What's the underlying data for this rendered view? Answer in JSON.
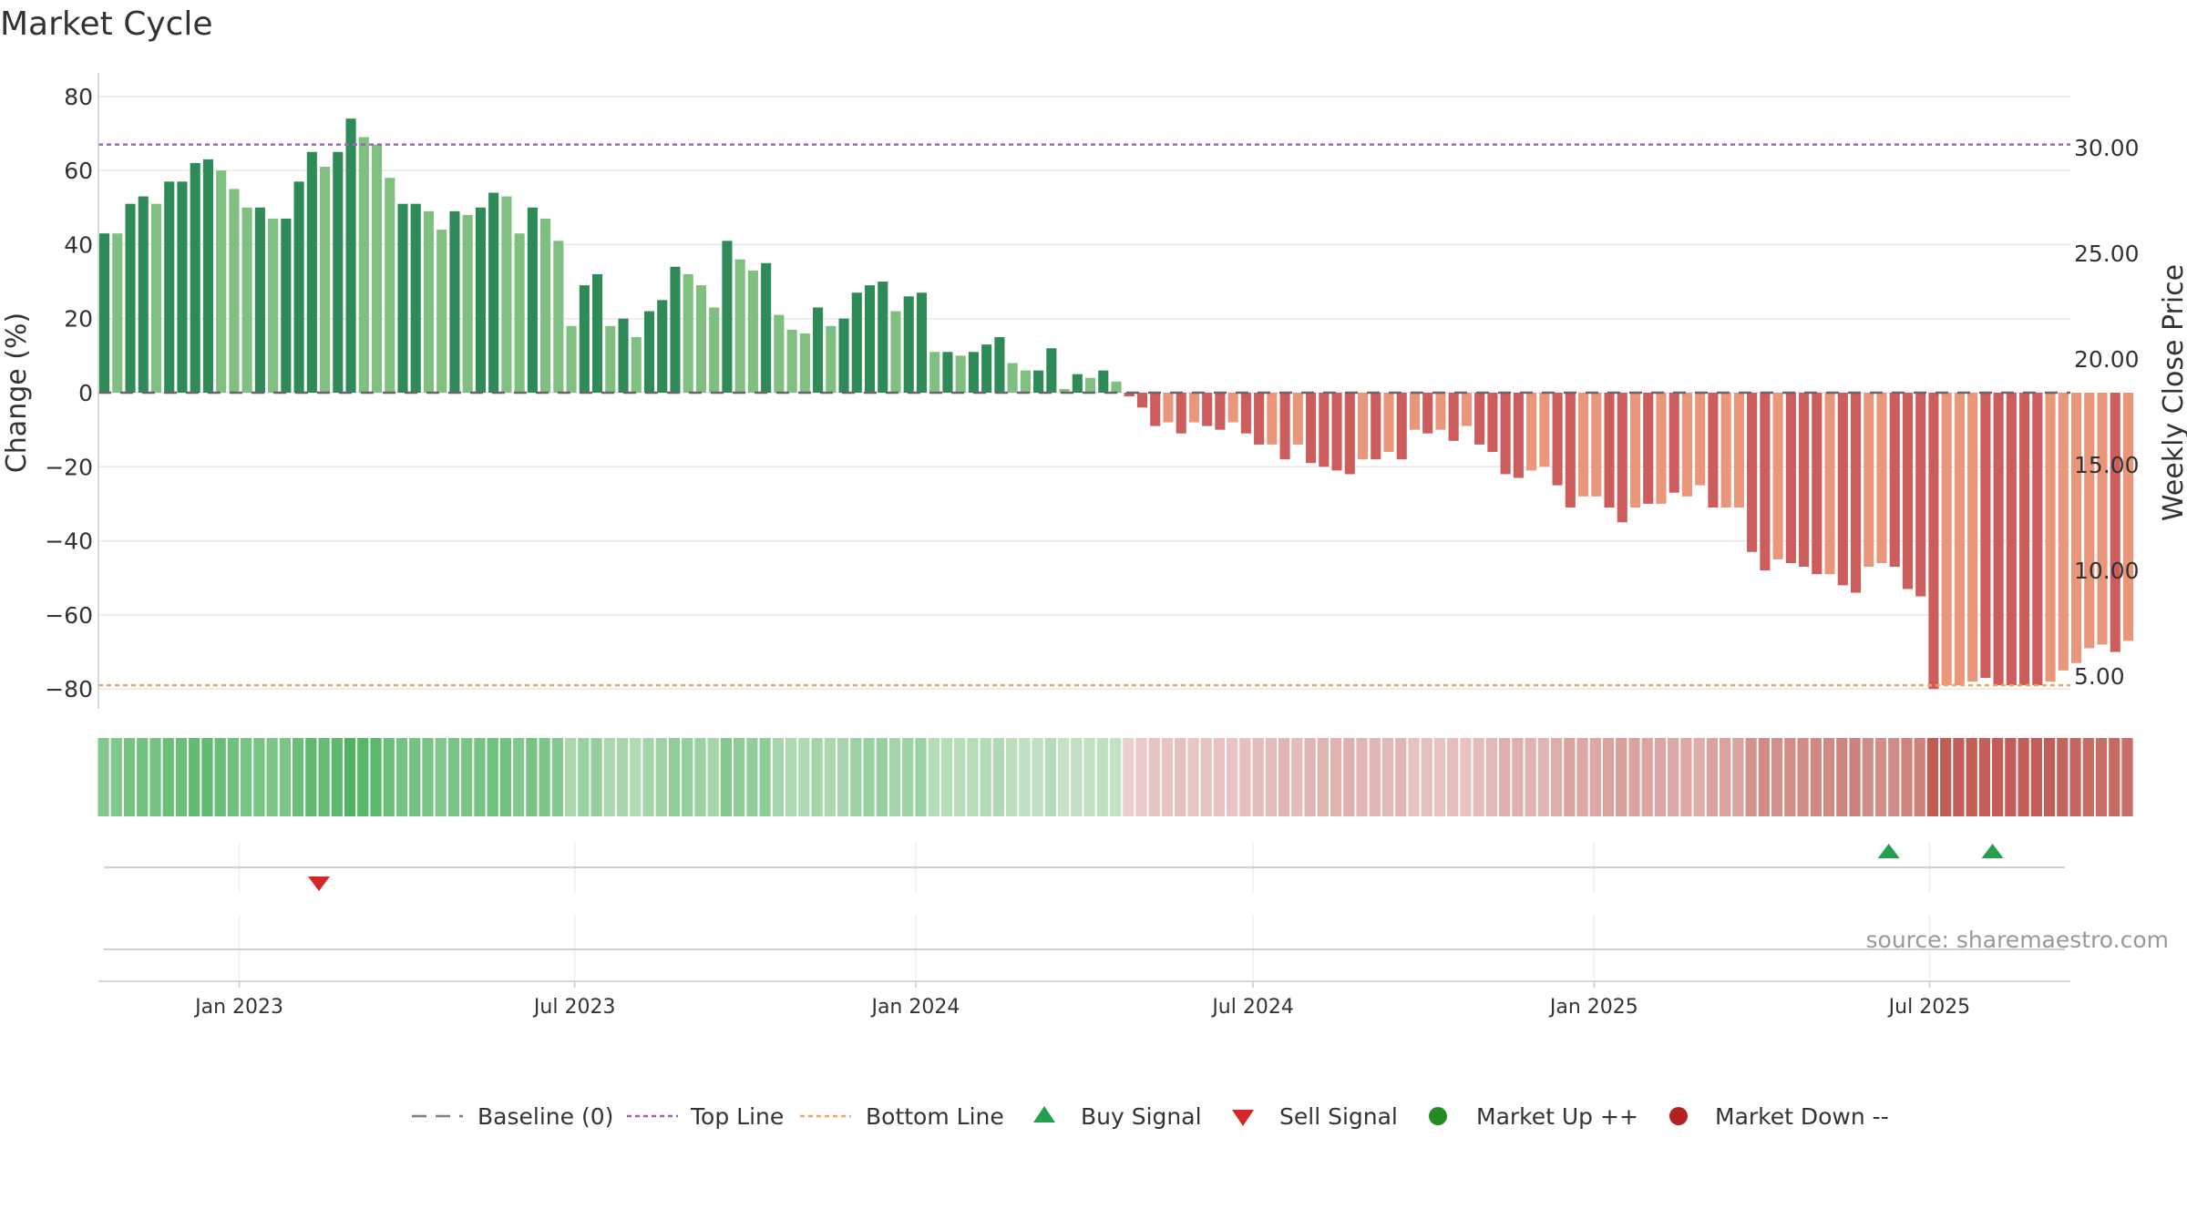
{
  "chart_data": {
    "type": "bar",
    "title": "Market Cycle",
    "ylabel": "Change (%)",
    "y2label": "Weekly Close Price",
    "ylim": [
      -86,
      86
    ],
    "y2lim": [
      1.3,
      32.3
    ],
    "yticks": [
      80,
      60,
      40,
      20,
      0,
      -20,
      -40,
      -60,
      -80
    ],
    "ytick_labels": [
      "80",
      "60",
      "40",
      "20",
      "0",
      "−20",
      "−40",
      "−60",
      "−80"
    ],
    "y2ticks": [
      30,
      25,
      20,
      15,
      10,
      5
    ],
    "y2tick_labels": [
      "30.00",
      "25.00",
      "20.00",
      "15.00",
      "10.00",
      "5.00"
    ],
    "x_start": "2022-10-17",
    "x_end": "2025-09-15",
    "xticks": [
      {
        "date": "2023-01-01",
        "label": "Jan 2023"
      },
      {
        "date": "2023-07-01",
        "label": "Jul 2023"
      },
      {
        "date": "2024-01-01",
        "label": "Jan 2024"
      },
      {
        "date": "2024-07-01",
        "label": "Jul 2024"
      },
      {
        "date": "2025-01-01",
        "label": "Jan 2025"
      },
      {
        "date": "2025-07-01",
        "label": "Jul 2025"
      }
    ],
    "first_week": "2022-10-17",
    "values": [
      43,
      43,
      51,
      53,
      51,
      57,
      57,
      62,
      63,
      60,
      55,
      50,
      50,
      47,
      47,
      57,
      65,
      61,
      65,
      74,
      69,
      67,
      58,
      51,
      51,
      49,
      44,
      49,
      48,
      50,
      54,
      53,
      43,
      50,
      47,
      41,
      18,
      29,
      32,
      18,
      20,
      15,
      22,
      25,
      34,
      32,
      29,
      23,
      41,
      36,
      33,
      35,
      21,
      17,
      16,
      23,
      18,
      20,
      27,
      29,
      30,
      22,
      26,
      27,
      11,
      11,
      10,
      11,
      13,
      15,
      8,
      6,
      6,
      12,
      1,
      5,
      4,
      6,
      3,
      -1,
      -4,
      -9,
      -8,
      -11,
      -8,
      -9,
      -10,
      -8,
      -11,
      -14,
      -14,
      -18,
      -14,
      -19,
      -20,
      -21,
      -22,
      -18,
      -18,
      -16,
      -18,
      -10,
      -11,
      -10,
      -13,
      -9,
      -14,
      -16,
      -22,
      -23,
      -21,
      -20,
      -25,
      -31,
      -28,
      -28,
      -31,
      -35,
      -31,
      -30,
      -30,
      -27,
      -28,
      -25,
      -31,
      -31,
      -31,
      -43,
      -48,
      -45,
      -46,
      -47,
      -49,
      -49,
      -52,
      -54,
      -47,
      -46,
      -47,
      -53,
      -55,
      -80,
      -79,
      -79,
      -78,
      -77,
      -79,
      -79,
      -79,
      -79,
      -78,
      -75,
      -73,
      -69,
      -68,
      -70,
      -67
    ],
    "shade": [
      1,
      0,
      1,
      1,
      0,
      1,
      1,
      1,
      1,
      0,
      0,
      0,
      1,
      0,
      1,
      1,
      1,
      0,
      1,
      1,
      0,
      0,
      0,
      1,
      1,
      0,
      0,
      1,
      0,
      1,
      1,
      0,
      0,
      1,
      0,
      0,
      0,
      1,
      1,
      0,
      1,
      0,
      1,
      1,
      1,
      0,
      0,
      0,
      1,
      0,
      0,
      1,
      0,
      0,
      0,
      1,
      0,
      1,
      1,
      1,
      1,
      0,
      1,
      1,
      0,
      1,
      0,
      1,
      1,
      1,
      0,
      0,
      1,
      1,
      0,
      1,
      0,
      1,
      0,
      1,
      1,
      1,
      0,
      1,
      0,
      1,
      1,
      0,
      1,
      1,
      0,
      1,
      0,
      1,
      1,
      1,
      1,
      0,
      1,
      0,
      1,
      0,
      1,
      0,
      1,
      0,
      1,
      1,
      1,
      1,
      0,
      0,
      1,
      1,
      0,
      0,
      1,
      1,
      0,
      1,
      0,
      1,
      0,
      0,
      1,
      0,
      0,
      1,
      1,
      0,
      1,
      1,
      1,
      0,
      1,
      1,
      0,
      0,
      1,
      1,
      1,
      1,
      0,
      0,
      0,
      1,
      1,
      1,
      1,
      1,
      0,
      0,
      0,
      0,
      0,
      1,
      0
    ],
    "top_line": 67,
    "bottom_line": -79,
    "buy_signals": [
      "2025-06-09",
      "2025-08-04"
    ],
    "sell_signals": [
      "2023-02-13"
    ],
    "legend": [
      {
        "label": "Baseline (0)",
        "marker": "dash-line",
        "color": "#7f7f7f"
      },
      {
        "label": "Top Line",
        "marker": "dotted-line",
        "color": "#9467bd"
      },
      {
        "label": "Bottom Line",
        "marker": "dotted-line",
        "color": "#f0a460"
      },
      {
        "label": "Buy Signal",
        "marker": "triangle-up",
        "color": "#22a04b"
      },
      {
        "label": "Sell Signal",
        "marker": "triangle-down",
        "color": "#d62728"
      },
      {
        "label": "Market Up ++",
        "marker": "circle",
        "color": "#228b22"
      },
      {
        "label": "Market Down --",
        "marker": "circle",
        "color": "#b22222"
      }
    ],
    "colors": {
      "pos_dark": "#2e8b57",
      "pos_light": "#7fbf7f",
      "neg_dark": "#cd5c5c",
      "neg_light": "#e9967a"
    },
    "grid": true,
    "legend_position": "bottom-center"
  },
  "source_text": "source: sharemaestro.com"
}
